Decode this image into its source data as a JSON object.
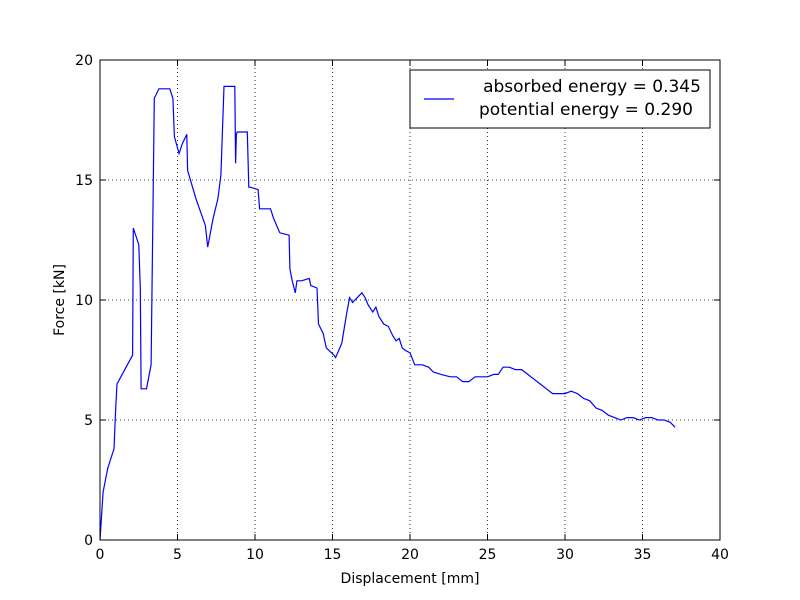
{
  "chart_data": {
    "type": "line",
    "title": "",
    "xlabel": "Displacement [mm]",
    "ylabel": "Force [kN]",
    "xlim": [
      0,
      40
    ],
    "ylim": [
      0,
      20
    ],
    "xticks": [
      0,
      5,
      10,
      15,
      20,
      25,
      30,
      35,
      40
    ],
    "yticks": [
      0,
      5,
      10,
      15,
      20
    ],
    "grid": true,
    "legend": {
      "placement": "upper-right",
      "entries": [
        "absorbed energy = 0.345",
        "potential energy = 0.290"
      ]
    },
    "line_color": "#0000ff",
    "series": [
      {
        "x": [
          0,
          0.2,
          0.5,
          0.9,
          1.0,
          1.1,
          2.1,
          2.15,
          2.5,
          2.6,
          2.65,
          3.0,
          3.3,
          3.5,
          3.8,
          4.5,
          4.7,
          4.8,
          5.1,
          5.3,
          5.6,
          5.65,
          6.2,
          6.8,
          6.95,
          7.3,
          7.6,
          7.8,
          8.0,
          8.1,
          8.7,
          8.75,
          8.8,
          8.85,
          9.0,
          9.5,
          9.6,
          9.7,
          10.2,
          10.3,
          11.0,
          11.2,
          11.6,
          12.2,
          12.25,
          12.4,
          12.6,
          12.7,
          13.0,
          13.5,
          13.6,
          14.0,
          14.1,
          14.4,
          14.6,
          15.1,
          15.2,
          15.6,
          15.9,
          16.1,
          16.3,
          16.6,
          16.9,
          17.1,
          17.3,
          17.6,
          17.8,
          18.0,
          18.3,
          18.6,
          18.9,
          19.1,
          19.3,
          19.5,
          19.7,
          20.0,
          20.3,
          20.8,
          21.2,
          21.5,
          22.0,
          22.6,
          23.0,
          23.4,
          23.8,
          24.2,
          24.6,
          25.0,
          25.4,
          25.7,
          26.0,
          26.4,
          26.8,
          27.2,
          27.6,
          28.0,
          28.4,
          28.8,
          29.2,
          29.6,
          30.0,
          30.4,
          30.8,
          31.2,
          31.6,
          32.0,
          32.4,
          32.8,
          33.2,
          33.6,
          34.0,
          34.4,
          34.8,
          35.2,
          35.6,
          36.0,
          36.4,
          36.8,
          37.1
        ],
        "y": [
          0,
          2.0,
          3.0,
          3.8,
          5.3,
          6.5,
          7.7,
          13.0,
          12.3,
          10.5,
          6.3,
          6.3,
          7.3,
          18.4,
          18.8,
          18.8,
          18.4,
          16.8,
          16.1,
          16.5,
          16.9,
          15.4,
          14.2,
          13.1,
          12.2,
          13.4,
          14.2,
          15.2,
          18.9,
          18.9,
          18.9,
          15.7,
          16.9,
          17.0,
          17.0,
          17.0,
          14.7,
          14.7,
          14.6,
          13.8,
          13.8,
          13.4,
          12.8,
          12.7,
          11.3,
          10.8,
          10.3,
          10.8,
          10.8,
          10.9,
          10.6,
          10.5,
          9.0,
          8.6,
          8.0,
          7.7,
          7.6,
          8.2,
          9.4,
          10.1,
          9.9,
          10.1,
          10.3,
          10.1,
          9.8,
          9.5,
          9.7,
          9.3,
          9.0,
          8.9,
          8.5,
          8.3,
          8.4,
          8.0,
          7.9,
          7.8,
          7.3,
          7.3,
          7.2,
          7.0,
          6.9,
          6.8,
          6.8,
          6.6,
          6.6,
          6.8,
          6.8,
          6.8,
          6.9,
          6.9,
          7.2,
          7.2,
          7.1,
          7.1,
          6.9,
          6.7,
          6.5,
          6.3,
          6.1,
          6.1,
          6.1,
          6.2,
          6.1,
          5.9,
          5.8,
          5.5,
          5.4,
          5.2,
          5.1,
          5.0,
          5.1,
          5.1,
          5.0,
          5.1,
          5.1,
          5.0,
          5.0,
          4.9,
          4.7
        ]
      }
    ]
  }
}
